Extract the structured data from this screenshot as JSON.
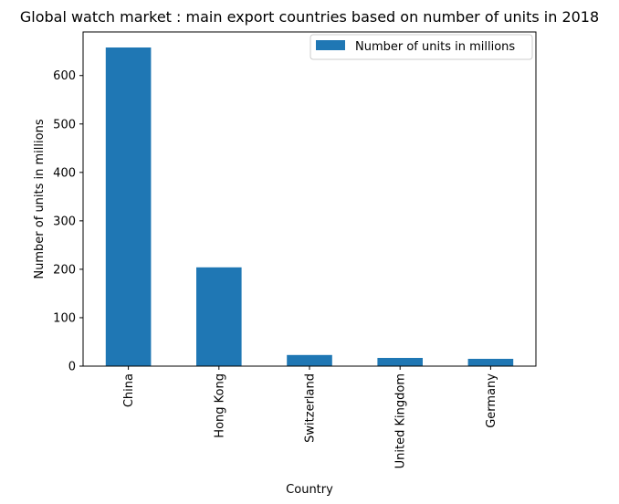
{
  "chart_data": {
    "type": "bar",
    "title": "Global watch market : main export countries based on number of units in 2018",
    "xlabel": "Country",
    "ylabel": "Number of units in millions",
    "categories": [
      "China",
      "Hong Kong",
      "Switzerland",
      "United Kingdom",
      "Germany"
    ],
    "series": [
      {
        "name": "Number of units in millions",
        "values": [
          658,
          204,
          23,
          17,
          15
        ]
      }
    ],
    "ylim": [
      0,
      690
    ],
    "yticks": [
      "0",
      "100",
      "200",
      "300",
      "400",
      "500",
      "600"
    ],
    "legend": "top-right",
    "grid": false,
    "colors": {
      "bar": "#1f77b4"
    }
  }
}
